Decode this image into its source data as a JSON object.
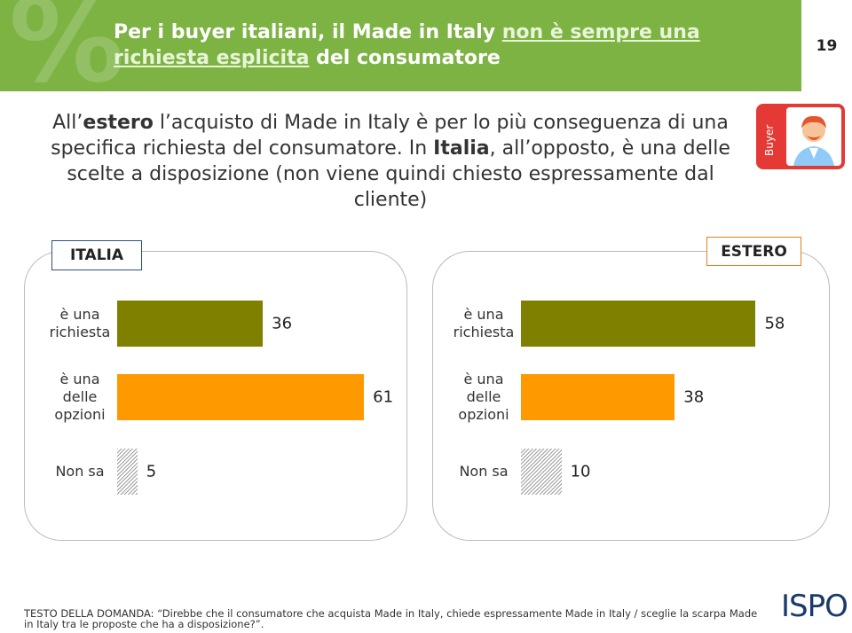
{
  "page_number": "19",
  "title": [
    "Per i buyer italiani, il Made in Italy ",
    "non è sempre una richiesta esplicita",
    " del consumatore"
  ],
  "subtitle": [
    "All’",
    "estero",
    " l’acquisto di Made in Italy è per lo più conseguenza di una specifica richiesta del consumatore. In ",
    "Italia",
    ", all’opposto, è una delle scelte a disposizione (non viene quindi chiesto espressamente dal cliente)"
  ],
  "badge": "Buyer",
  "chart_data": [
    {
      "type": "bar",
      "title": "ITALIA",
      "categories": [
        "è una richiesta",
        "è una delle opzioni",
        "Non sa"
      ],
      "values": [
        36,
        61,
        5
      ],
      "colors": [
        "#808000",
        "#ff9900",
        "#9e9e9e"
      ],
      "hatched": [
        false,
        false,
        true
      ]
    },
    {
      "type": "bar",
      "title": "ESTERO",
      "categories": [
        "è una richiesta",
        "è una delle opzioni",
        "Non sa"
      ],
      "values": [
        58,
        38,
        10
      ],
      "colors": [
        "#808000",
        "#ff9900",
        "#9e9e9e"
      ],
      "hatched": [
        false,
        false,
        true
      ]
    }
  ],
  "footnote": "TESTO DELLA DOMANDA: “Direbbe che il consumatore che acquista Made in Italy, chiede espressamente Made in Italy / sceglie la scarpa Made in Italy tra le proposte che ha a disposizione?”.",
  "logo": "ISPO"
}
